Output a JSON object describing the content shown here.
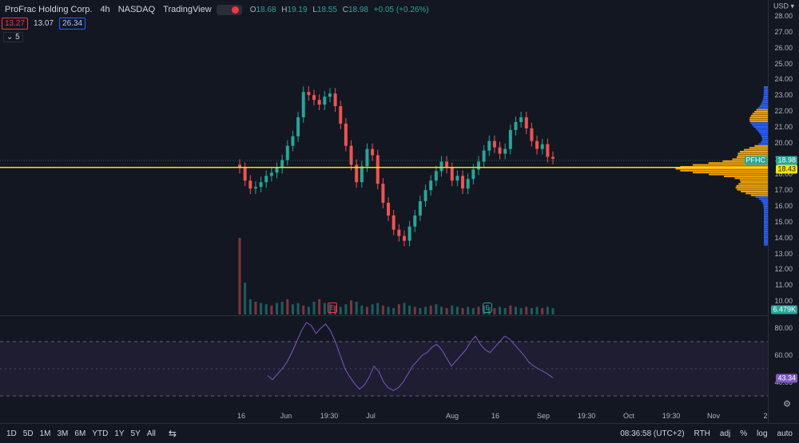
{
  "legend": {
    "symbol_name": "ProFrac Holding Corp.",
    "interval": "4h",
    "exchange": "NASDAQ",
    "source": "TradingView",
    "ohlc": {
      "o_label": "O",
      "o": "18.68",
      "h_label": "H",
      "h": "19.19",
      "l_label": "L",
      "l": "18.55",
      "c_label": "C",
      "c": "18.98",
      "change": "+0.05 (+0.26%)"
    },
    "prices": {
      "bid": "13.27",
      "mid": "13.07",
      "ask": "26.34"
    },
    "collapse_label": "5"
  },
  "axis": {
    "currency": "USD",
    "price_ticks": [
      "28.00",
      "27.00",
      "26.00",
      "25.00",
      "24.00",
      "23.00",
      "22.00",
      "21.00",
      "20.00",
      "19.00",
      "18.00",
      "17.00",
      "16.00",
      "15.00",
      "14.00",
      "13.00",
      "12.00",
      "11.00",
      "10.00"
    ],
    "rsi_ticks": [
      "80.00",
      "60.00",
      "40.00"
    ],
    "badges": {
      "symbol": "PFHC",
      "last_price": "18.98",
      "line_price": "18.43",
      "volume": "6.479K",
      "rsi": "43.34"
    },
    "time_ticks": [
      "16",
      "Jun",
      "19:30",
      "Jul",
      "Aug",
      "16",
      "Sep",
      "19:30",
      "Oct",
      "19:30",
      "Nov",
      "2"
    ]
  },
  "events": {
    "earnings": "E",
    "dividend": "E"
  },
  "bottom": {
    "ranges": [
      "1D",
      "5D",
      "1M",
      "3M",
      "6M",
      "YTD",
      "1Y",
      "5Y",
      "All"
    ],
    "time": "08:36:58 (UTC+2)",
    "session": "RTH",
    "adj": "adj",
    "pct": "%",
    "log": "log",
    "auto": "auto"
  },
  "colors": {
    "bg": "#131722",
    "up": "#26a69a",
    "down": "#ef5350",
    "line": "#f2e600",
    "rsi": "#7e57c2",
    "profile_up": "#f7a600",
    "profile_blue": "#2962ff"
  },
  "chart_data": {
    "type": "candlestick",
    "price_range": [
      10,
      28
    ],
    "horizontal_line": 18.43,
    "rsi_levels": [
      70,
      50,
      30
    ],
    "rsi_range": [
      20,
      90
    ],
    "series": [
      {
        "name": "Price",
        "close": [
          18.4,
          17.6,
          17.1,
          17.2,
          17.5,
          17.9,
          18.1,
          18.4,
          18.9,
          19.8,
          20.4,
          21.6,
          23.2,
          23.0,
          22.7,
          22.4,
          22.9,
          23.1,
          22.3,
          21.2,
          19.8,
          18.6,
          17.5,
          18.5,
          19.6,
          19.2,
          17.4,
          16.2,
          15.4,
          14.5,
          14.1,
          13.8,
          14.7,
          15.4,
          16.3,
          17.0,
          17.6,
          18.2,
          18.8,
          18.4,
          17.6,
          17.9,
          17.1,
          17.7,
          18.3,
          18.8,
          19.5,
          20.1,
          19.7,
          19.3,
          19.6,
          20.8,
          21.3,
          21.6,
          20.9,
          20.1,
          19.6,
          19.9,
          19.1,
          18.98
        ]
      },
      {
        "name": "RSI",
        "values": [
          45,
          42,
          46,
          50,
          55,
          62,
          70,
          78,
          84,
          82,
          76,
          80,
          83,
          78,
          70,
          60,
          50,
          44,
          39,
          35,
          38,
          44,
          52,
          48,
          40,
          36,
          34,
          36,
          40,
          46,
          52,
          56,
          60,
          62,
          66,
          68,
          64,
          58,
          52,
          56,
          60,
          64,
          70,
          74,
          68,
          64,
          62,
          66,
          70,
          74,
          72,
          68,
          64,
          60,
          55,
          52,
          50,
          48,
          46,
          43.34
        ]
      },
      {
        "name": "Volume",
        "values": [
          60,
          25,
          12,
          10,
          9,
          8,
          7,
          9,
          10,
          12,
          8,
          9,
          7,
          6,
          10,
          12,
          9,
          8,
          7,
          6,
          8,
          11,
          10,
          7,
          6,
          8,
          9,
          7,
          6,
          5,
          8,
          9,
          7,
          6,
          5,
          6,
          7,
          8,
          6,
          5,
          7,
          6,
          5,
          6,
          5,
          6,
          7,
          6,
          5,
          6,
          5,
          7,
          6,
          5,
          6,
          5,
          6,
          5,
          6,
          5
        ]
      }
    ]
  }
}
